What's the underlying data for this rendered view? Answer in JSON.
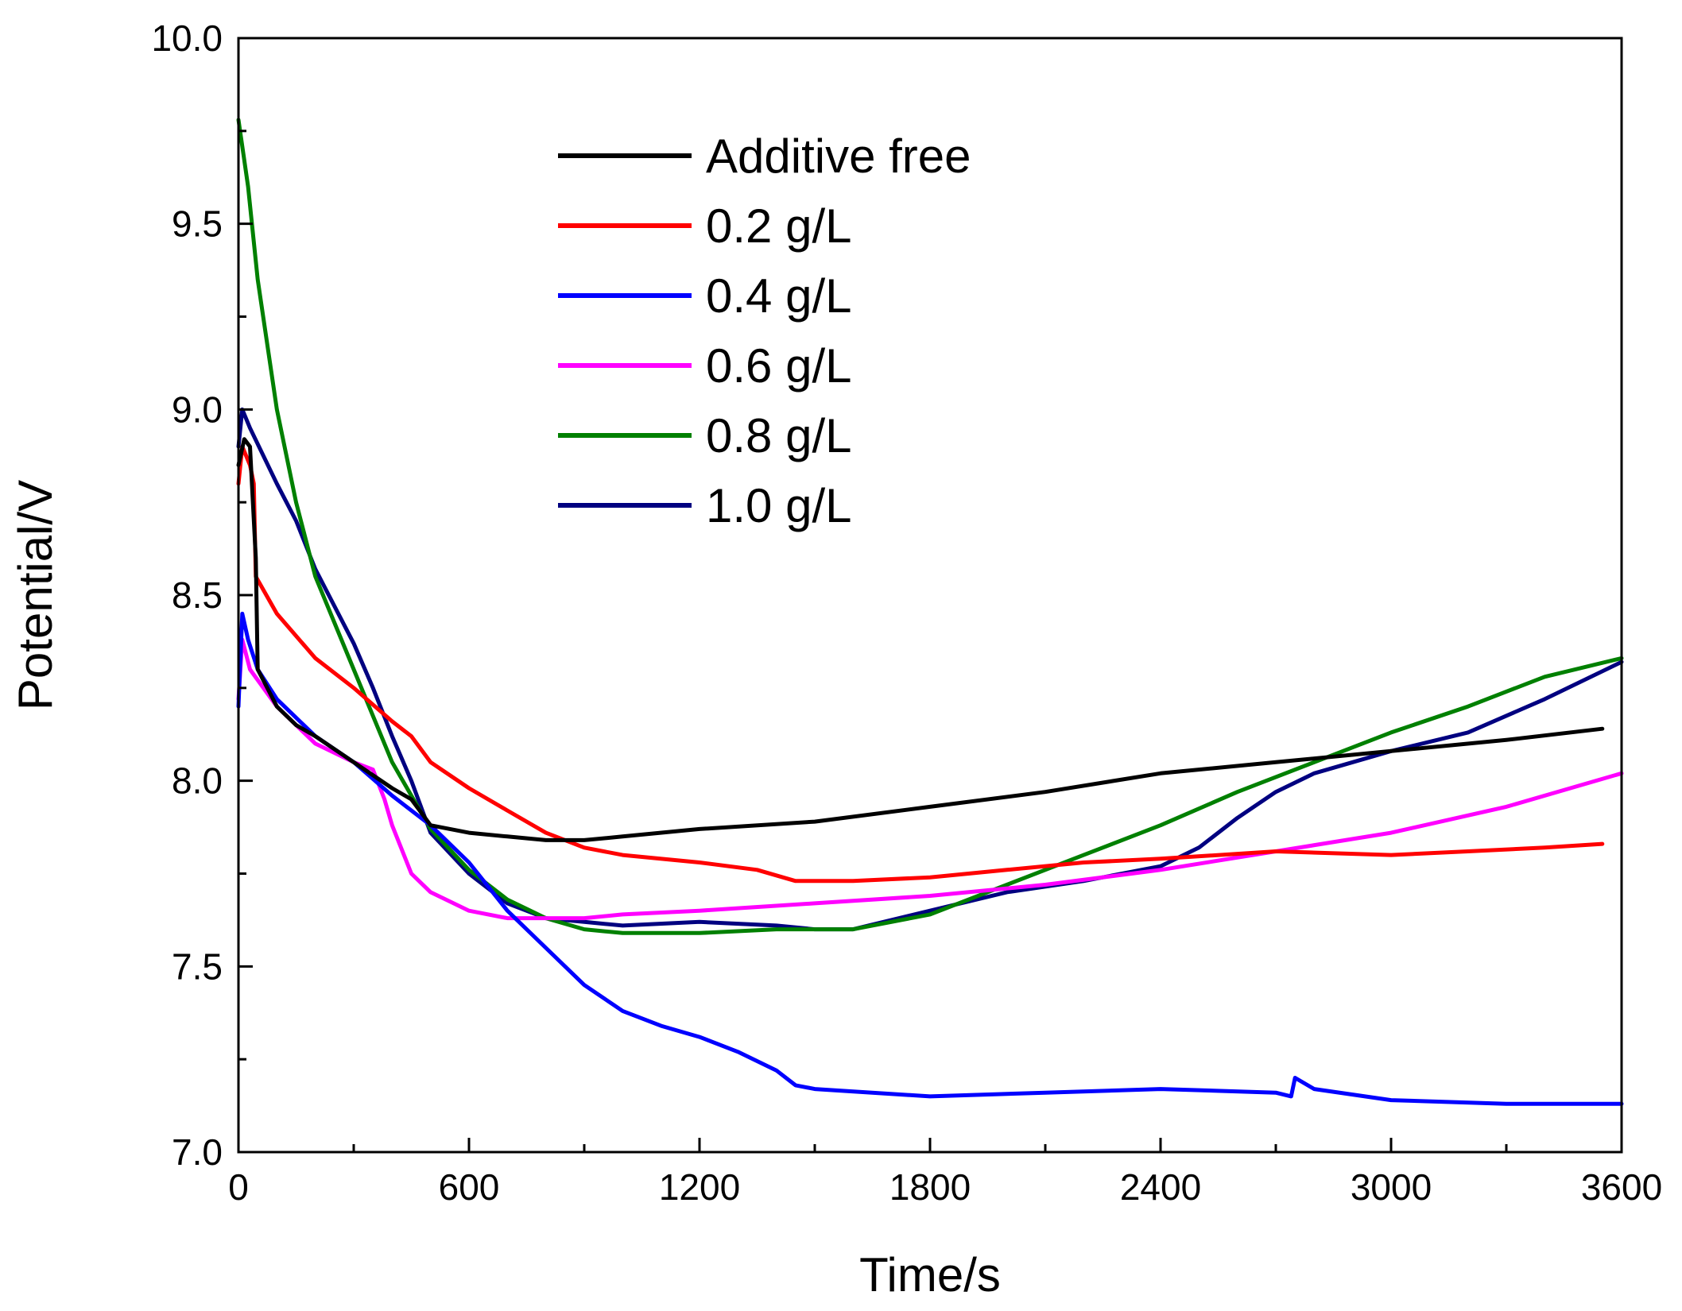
{
  "chart_data": {
    "type": "line",
    "xlabel": "Time/s",
    "ylabel": "Potential/V",
    "xlim": [
      0,
      3600
    ],
    "ylim": [
      7.0,
      10.0
    ],
    "xticks": [
      0,
      600,
      1200,
      1800,
      2400,
      3000,
      3600
    ],
    "yticks": [
      7.0,
      7.5,
      8.0,
      8.5,
      9.0,
      9.5,
      10.0
    ],
    "grid": false,
    "legend_position": "top-center",
    "series": [
      {
        "name": "Additive free",
        "color": "#000000",
        "points": [
          [
            0,
            8.85
          ],
          [
            15,
            8.92
          ],
          [
            30,
            8.9
          ],
          [
            45,
            8.6
          ],
          [
            50,
            8.3
          ],
          [
            100,
            8.2
          ],
          [
            150,
            8.15
          ],
          [
            200,
            8.12
          ],
          [
            300,
            8.05
          ],
          [
            400,
            7.98
          ],
          [
            450,
            7.95
          ],
          [
            500,
            7.88
          ],
          [
            600,
            7.86
          ],
          [
            700,
            7.85
          ],
          [
            800,
            7.84
          ],
          [
            900,
            7.84
          ],
          [
            1000,
            7.85
          ],
          [
            1200,
            7.87
          ],
          [
            1500,
            7.89
          ],
          [
            1800,
            7.93
          ],
          [
            2100,
            7.97
          ],
          [
            2400,
            8.02
          ],
          [
            2700,
            8.05
          ],
          [
            3000,
            8.08
          ],
          [
            3300,
            8.11
          ],
          [
            3550,
            8.14
          ]
        ]
      },
      {
        "name": "0.2 g/L",
        "color": "#ff0000",
        "points": [
          [
            0,
            8.8
          ],
          [
            10,
            8.9
          ],
          [
            30,
            8.85
          ],
          [
            40,
            8.8
          ],
          [
            45,
            8.55
          ],
          [
            100,
            8.45
          ],
          [
            200,
            8.33
          ],
          [
            300,
            8.25
          ],
          [
            400,
            8.16
          ],
          [
            450,
            8.12
          ],
          [
            500,
            8.05
          ],
          [
            600,
            7.98
          ],
          [
            700,
            7.92
          ],
          [
            800,
            7.86
          ],
          [
            900,
            7.82
          ],
          [
            1000,
            7.8
          ],
          [
            1200,
            7.78
          ],
          [
            1350,
            7.76
          ],
          [
            1450,
            7.73
          ],
          [
            1600,
            7.73
          ],
          [
            1800,
            7.74
          ],
          [
            2000,
            7.76
          ],
          [
            2200,
            7.78
          ],
          [
            2400,
            7.79
          ],
          [
            2700,
            7.81
          ],
          [
            3000,
            7.8
          ],
          [
            3200,
            7.81
          ],
          [
            3400,
            7.82
          ],
          [
            3550,
            7.83
          ]
        ]
      },
      {
        "name": "0.4 g/L",
        "color": "#0000ff",
        "points": [
          [
            0,
            8.2
          ],
          [
            10,
            8.45
          ],
          [
            25,
            8.38
          ],
          [
            50,
            8.3
          ],
          [
            100,
            8.22
          ],
          [
            200,
            8.12
          ],
          [
            300,
            8.05
          ],
          [
            400,
            7.96
          ],
          [
            500,
            7.88
          ],
          [
            600,
            7.78
          ],
          [
            700,
            7.65
          ],
          [
            800,
            7.55
          ],
          [
            900,
            7.45
          ],
          [
            1000,
            7.38
          ],
          [
            1100,
            7.34
          ],
          [
            1200,
            7.31
          ],
          [
            1300,
            7.27
          ],
          [
            1400,
            7.22
          ],
          [
            1450,
            7.18
          ],
          [
            1500,
            7.17
          ],
          [
            1800,
            7.15
          ],
          [
            2100,
            7.16
          ],
          [
            2400,
            7.17
          ],
          [
            2700,
            7.16
          ],
          [
            2740,
            7.15
          ],
          [
            2750,
            7.2
          ],
          [
            2800,
            7.17
          ],
          [
            3000,
            7.14
          ],
          [
            3300,
            7.13
          ],
          [
            3600,
            7.13
          ]
        ]
      },
      {
        "name": "0.6 g/L",
        "color": "#ff00ff",
        "points": [
          [
            0,
            8.22
          ],
          [
            10,
            8.38
          ],
          [
            30,
            8.3
          ],
          [
            100,
            8.2
          ],
          [
            200,
            8.1
          ],
          [
            300,
            8.05
          ],
          [
            350,
            8.03
          ],
          [
            380,
            7.95
          ],
          [
            400,
            7.88
          ],
          [
            450,
            7.75
          ],
          [
            500,
            7.7
          ],
          [
            600,
            7.65
          ],
          [
            700,
            7.63
          ],
          [
            800,
            7.63
          ],
          [
            900,
            7.63
          ],
          [
            1000,
            7.64
          ],
          [
            1200,
            7.65
          ],
          [
            1500,
            7.67
          ],
          [
            1800,
            7.69
          ],
          [
            2100,
            7.72
          ],
          [
            2400,
            7.76
          ],
          [
            2700,
            7.81
          ],
          [
            3000,
            7.86
          ],
          [
            3300,
            7.93
          ],
          [
            3600,
            8.02
          ]
        ]
      },
      {
        "name": "0.8 g/L",
        "color": "#008000",
        "points": [
          [
            0,
            9.78
          ],
          [
            25,
            9.6
          ],
          [
            50,
            9.35
          ],
          [
            100,
            9.0
          ],
          [
            150,
            8.75
          ],
          [
            200,
            8.55
          ],
          [
            300,
            8.3
          ],
          [
            400,
            8.05
          ],
          [
            500,
            7.87
          ],
          [
            600,
            7.76
          ],
          [
            700,
            7.68
          ],
          [
            800,
            7.63
          ],
          [
            900,
            7.6
          ],
          [
            1000,
            7.59
          ],
          [
            1200,
            7.59
          ],
          [
            1400,
            7.6
          ],
          [
            1600,
            7.6
          ],
          [
            1800,
            7.64
          ],
          [
            2000,
            7.72
          ],
          [
            2200,
            7.8
          ],
          [
            2400,
            7.88
          ],
          [
            2600,
            7.97
          ],
          [
            2800,
            8.05
          ],
          [
            3000,
            8.13
          ],
          [
            3200,
            8.2
          ],
          [
            3400,
            8.28
          ],
          [
            3600,
            8.33
          ]
        ]
      },
      {
        "name": "1.0 g/L",
        "color": "#000080",
        "points": [
          [
            0,
            8.9
          ],
          [
            10,
            9.0
          ],
          [
            30,
            8.95
          ],
          [
            100,
            8.8
          ],
          [
            150,
            8.7
          ],
          [
            200,
            8.57
          ],
          [
            250,
            8.47
          ],
          [
            300,
            8.37
          ],
          [
            350,
            8.25
          ],
          [
            400,
            8.12
          ],
          [
            450,
            8.0
          ],
          [
            500,
            7.86
          ],
          [
            600,
            7.75
          ],
          [
            700,
            7.67
          ],
          [
            800,
            7.63
          ],
          [
            900,
            7.62
          ],
          [
            1000,
            7.61
          ],
          [
            1200,
            7.62
          ],
          [
            1400,
            7.61
          ],
          [
            1500,
            7.6
          ],
          [
            1600,
            7.6
          ],
          [
            1800,
            7.65
          ],
          [
            2000,
            7.7
          ],
          [
            2200,
            7.73
          ],
          [
            2400,
            7.77
          ],
          [
            2500,
            7.82
          ],
          [
            2600,
            7.9
          ],
          [
            2700,
            7.97
          ],
          [
            2800,
            8.02
          ],
          [
            2900,
            8.05
          ],
          [
            3000,
            8.08
          ],
          [
            3200,
            8.13
          ],
          [
            3400,
            8.22
          ],
          [
            3600,
            8.32
          ]
        ]
      }
    ]
  }
}
